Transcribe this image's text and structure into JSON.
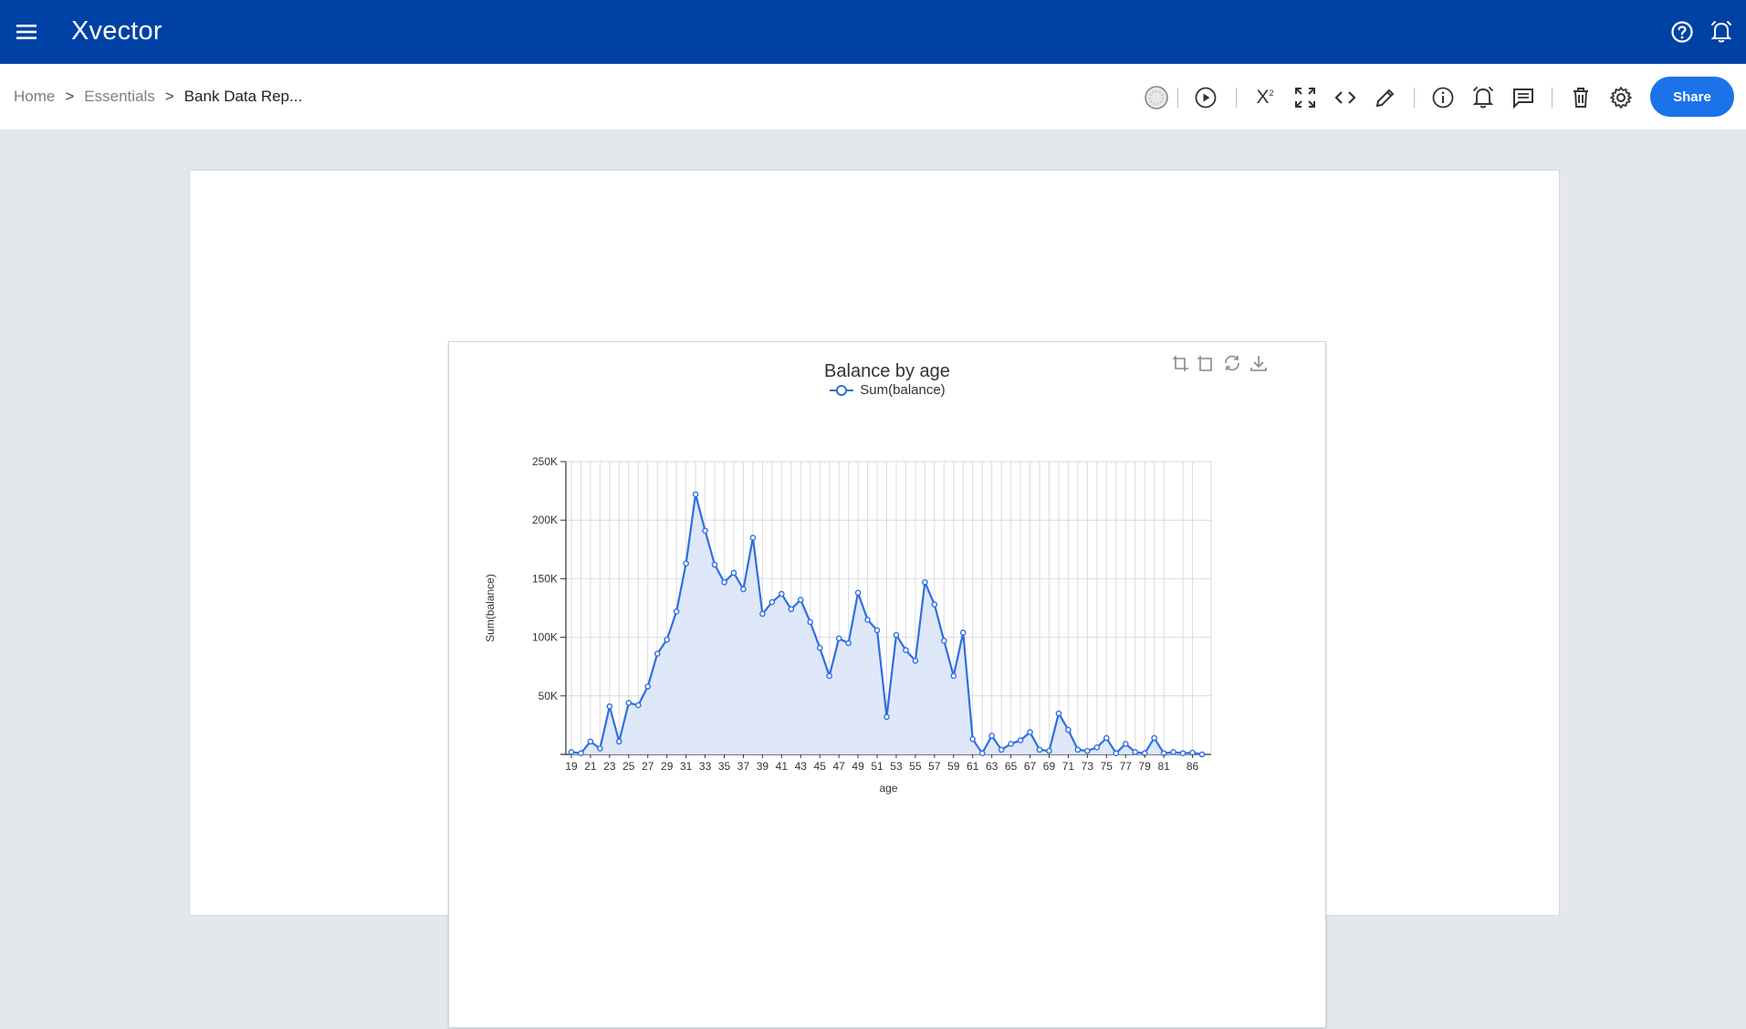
{
  "app": {
    "logo": "Xvector",
    "icons": {
      "menu": "hamburger-menu-icon",
      "help": "help-circle-icon",
      "notifications": "bell-icon"
    }
  },
  "breadcrumb": {
    "items": [
      "Home",
      "Essentials",
      "Bank Data Rep..."
    ],
    "separator": ">"
  },
  "toolbar": {
    "share_label": "Share",
    "superscript_label": "X",
    "icons": [
      "status-icon",
      "run-icon",
      "superscript-icon",
      "fullscreen-icon",
      "code-icon",
      "edit-icon",
      "info-icon",
      "alert-icon",
      "comment-icon",
      "delete-icon",
      "settings-icon"
    ]
  },
  "colors": {
    "topbar": "#0041a5",
    "accent": "#1a73e8",
    "series": "#2f6fdf",
    "area": "#dbe6f8"
  },
  "chart_data": {
    "type": "area",
    "title": "Balance by age",
    "xlabel": "age",
    "ylabel": "Sum(balance)",
    "ylim": [
      0,
      250000
    ],
    "yticks": [
      0,
      50000,
      100000,
      150000,
      200000,
      250000
    ],
    "ytick_labels": [
      "",
      "50K",
      "100K",
      "150K",
      "200K",
      "250K"
    ],
    "xtick_labels": [
      "19",
      "21",
      "23",
      "25",
      "27",
      "29",
      "31",
      "33",
      "35",
      "37",
      "39",
      "41",
      "43",
      "45",
      "47",
      "49",
      "51",
      "53",
      "55",
      "57",
      "59",
      "61",
      "63",
      "65",
      "67",
      "69",
      "71",
      "73",
      "75",
      "77",
      "79",
      "81",
      "86"
    ],
    "grid": true,
    "legend_position": "top-center",
    "series": [
      {
        "name": "Sum(balance)",
        "x": [
          19,
          20,
          21,
          22,
          23,
          24,
          25,
          26,
          27,
          28,
          29,
          30,
          31,
          32,
          33,
          34,
          35,
          36,
          37,
          38,
          39,
          40,
          41,
          42,
          43,
          44,
          45,
          46,
          47,
          48,
          49,
          50,
          51,
          52,
          53,
          54,
          55,
          56,
          57,
          58,
          59,
          60,
          61,
          62,
          63,
          64,
          65,
          66,
          67,
          68,
          69,
          70,
          71,
          72,
          73,
          74,
          75,
          76,
          77,
          78,
          79,
          80,
          81,
          83,
          84,
          86,
          87
        ],
        "values": [
          2000,
          1000,
          11000,
          5000,
          41000,
          11000,
          44000,
          42000,
          58000,
          86000,
          98000,
          122000,
          163000,
          222000,
          191000,
          162000,
          147000,
          155000,
          141000,
          185000,
          120000,
          130000,
          137000,
          124000,
          132000,
          113000,
          91000,
          67000,
          99000,
          95000,
          138000,
          115000,
          106000,
          32000,
          102000,
          89000,
          80000,
          147000,
          128000,
          97000,
          67000,
          104000,
          13000,
          1000,
          16000,
          4000,
          9000,
          12000,
          19000,
          4000,
          3000,
          35000,
          21000,
          4000,
          3000,
          6000,
          14000,
          1000,
          9000,
          2000,
          1000,
          14000,
          1000,
          2000,
          1000,
          1500,
          0
        ]
      }
    ],
    "x_category_index": {
      "19": 0,
      "20": 1,
      "21": 2,
      "22": 3,
      "23": 4,
      "24": 5,
      "25": 6,
      "26": 7,
      "27": 8,
      "28": 9,
      "29": 10,
      "30": 11,
      "31": 12,
      "32": 13,
      "33": 14,
      "34": 15,
      "35": 16,
      "36": 17,
      "37": 18,
      "38": 19,
      "39": 20,
      "40": 21,
      "41": 22,
      "42": 23,
      "43": 24,
      "44": 25,
      "45": 26,
      "46": 27,
      "47": 28,
      "48": 29,
      "49": 30,
      "50": 31,
      "51": 32,
      "52": 33,
      "53": 34,
      "54": 35,
      "55": 36,
      "56": 37,
      "57": 38,
      "58": 39,
      "59": 40,
      "60": 41,
      "61": 42,
      "62": 43,
      "63": 44,
      "64": 45,
      "65": 46,
      "66": 47,
      "67": 48,
      "68": 49,
      "69": 50,
      "70": 51,
      "71": 52,
      "72": 53,
      "73": 54,
      "74": 55,
      "75": 56,
      "76": 57,
      "77": 58,
      "78": 59,
      "79": 60,
      "80": 61,
      "81": 62,
      "83": 63,
      "84": 64,
      "86": 65,
      "87": 66
    },
    "chart_tools": [
      "zoom-icon",
      "zoom-reset-icon",
      "restore-icon",
      "download-icon"
    ]
  }
}
